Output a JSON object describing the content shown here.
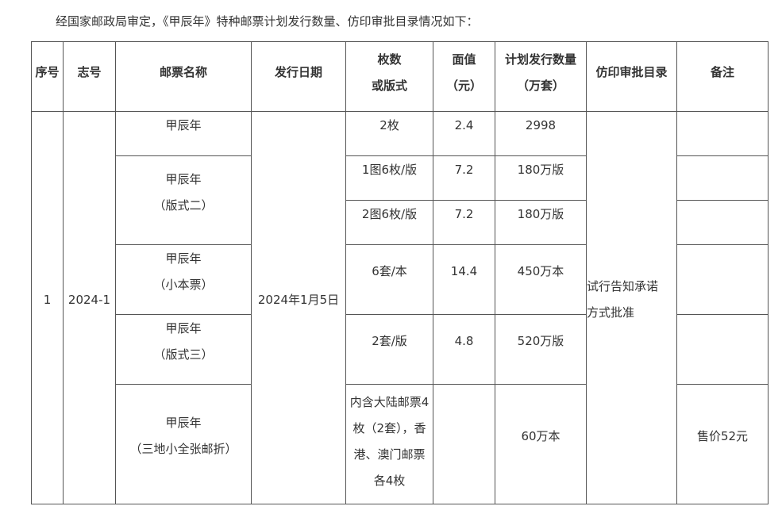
{
  "intro": "经国家邮政局审定，《甲辰年》特种邮票计划发行数量、仿印审批目录情况如下：",
  "headers": [
    "序号",
    "志号",
    "邮票名称",
    "发行日期",
    "枚数\n或版式",
    "面值\n（元）",
    "计划发行数量\n（万套）",
    "仿印审批目录",
    "备注"
  ],
  "common": {
    "index": "1",
    "code": "2024-1",
    "date": "2024年1月5日",
    "approval": "试行告知承诺\n方式批准"
  },
  "rows": [
    {
      "name": "甲辰年",
      "format": "2枚",
      "value": "2.4",
      "quantity": "2998",
      "note": ""
    },
    {
      "name": "甲辰年\n（版式二）",
      "format": "1图6枚/版",
      "value": "7.2",
      "quantity": "180万版",
      "note": ""
    },
    {
      "format": "2图6枚/版",
      "value": "7.2",
      "quantity": "180万版",
      "note": ""
    },
    {
      "name": "甲辰年\n（小本票）",
      "format": "6套/本",
      "value": "14.4",
      "quantity": "450万本",
      "note": ""
    },
    {
      "name": "甲辰年\n（版式三）",
      "format": "2套/版",
      "value": "4.8",
      "quantity": "520万版",
      "note": ""
    },
    {
      "name": "甲辰年\n（三地小全张邮折）",
      "format": "内含大陆邮票4\n枚（2套），香\n港、澳门邮票\n各4枚",
      "value": "",
      "quantity": "60万本",
      "note": "售价52元"
    }
  ]
}
